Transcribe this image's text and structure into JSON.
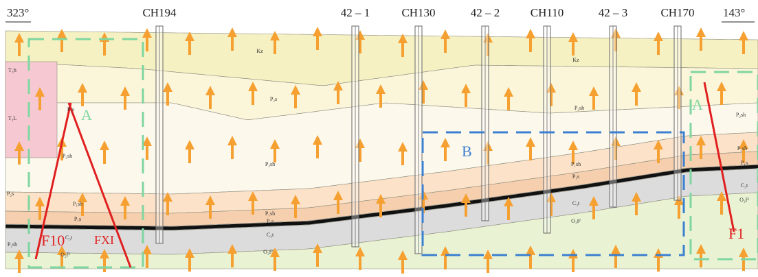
{
  "orientation": {
    "left": "323°",
    "right": "143°"
  },
  "boreholes": [
    {
      "label": "CH194"
    },
    {
      "label": "42 – 1"
    },
    {
      "label": "CH130"
    },
    {
      "label": "42 – 2"
    },
    {
      "label": "CH110"
    },
    {
      "label": "42 – 3"
    },
    {
      "label": "CH170"
    }
  ],
  "zones": [
    {
      "label": "A"
    },
    {
      "label": "B"
    },
    {
      "label": "A"
    }
  ],
  "faults": [
    {
      "label": "F10"
    },
    {
      "label": "FXI"
    },
    {
      "label": "F1"
    }
  ],
  "strata_labels": [
    "Kz",
    "Kz",
    "T₃h",
    "T₃L",
    "P₂s",
    "P₂s",
    "P₂sh",
    "P₂sh",
    "P₂sh",
    "P₂sh",
    "P₂sh",
    "P₂s",
    "P₁sh",
    "P₁s",
    "P₁sh",
    "P₁s",
    "C₃t",
    "O₂f²",
    "P₁sh",
    "P₁s",
    "C₃t",
    "O₂f²",
    "C₃t",
    "O₂f²",
    "P₂sh",
    "P₁s",
    "C₃t",
    "O₂f²"
  ]
}
